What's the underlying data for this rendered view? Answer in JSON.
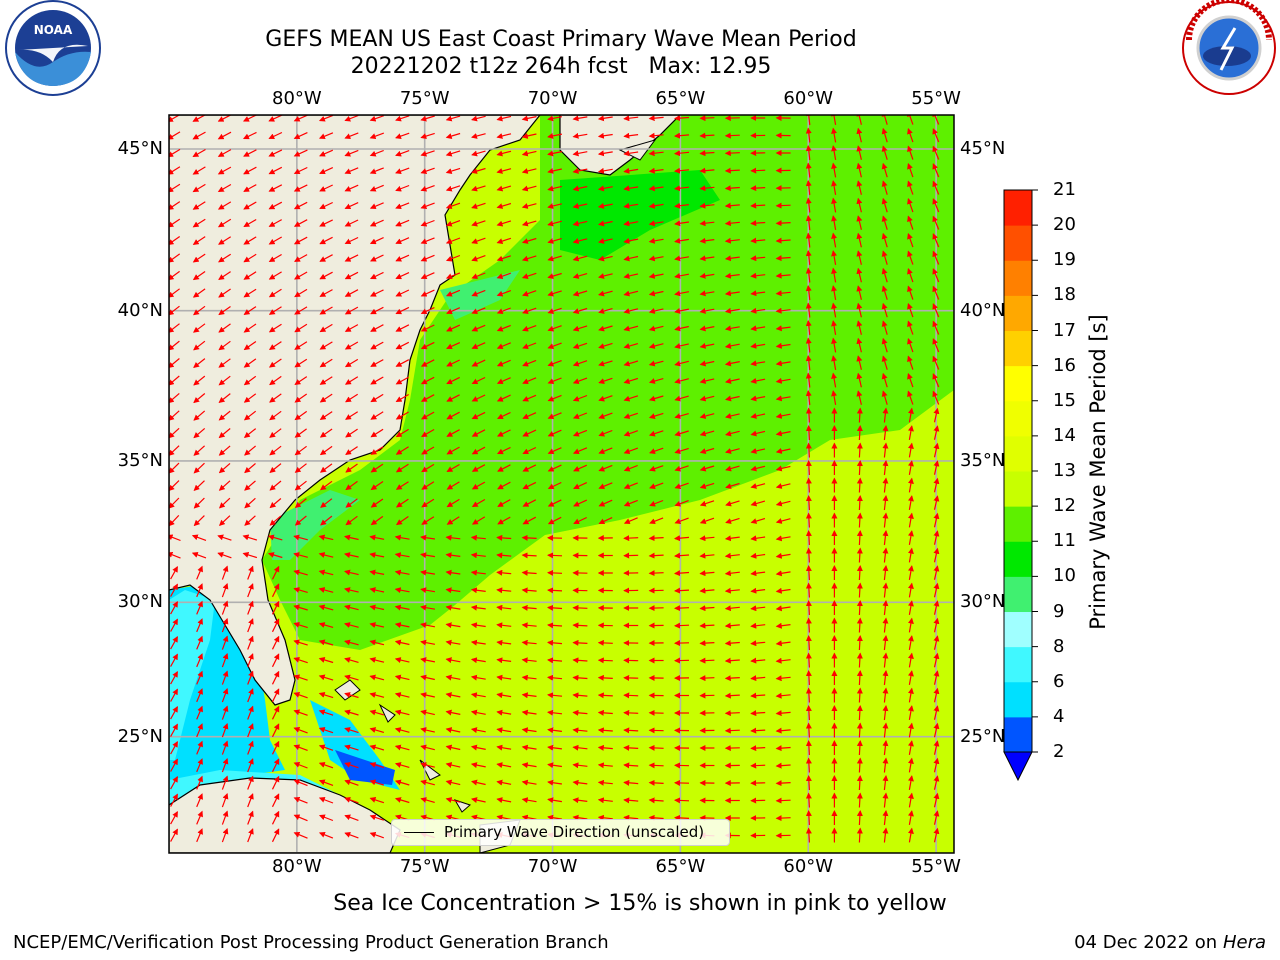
{
  "header": {
    "title_line1": "GEFS MEAN US East Coast Primary Wave Mean Period",
    "title_line2": "20221202 t12z 264h fcst   Max: 12.95"
  },
  "logos": {
    "left": {
      "icon": "noaa-logo",
      "text": "NOAA"
    },
    "right": {
      "icon": "nws-logo",
      "text": "NATIONAL WEATHER SERVICE"
    }
  },
  "map": {
    "lon_labels": [
      "80°W",
      "75°W",
      "70°W",
      "65°W",
      "60°W",
      "55°W"
    ],
    "lat_labels": [
      "45°N",
      "40°N",
      "35°N",
      "30°N",
      "25°N"
    ],
    "lon_values": [
      -80,
      -75,
      -70,
      -65,
      -60,
      -55
    ],
    "lat_values": [
      45,
      40,
      35,
      30,
      25
    ],
    "extent": {
      "lon_min": -85,
      "lon_max": -54.3,
      "lat_min": 20.5,
      "lat_max": 46
    },
    "land_color": "#efedde",
    "arrow_color": "#ff0000",
    "grid_color": "#b0b0b0",
    "legend": "Primary Wave Direction (unscaled)"
  },
  "colorbar": {
    "label": "Primary Wave Mean Period [s]",
    "ticks": [
      "2",
      "4",
      "6",
      "8",
      "9",
      "10",
      "11",
      "12",
      "13",
      "14",
      "15",
      "16",
      "17",
      "18",
      "19",
      "20",
      "21"
    ],
    "colors": [
      "#0055ff",
      "#00e0ff",
      "#40f8ff",
      "#a0ffff",
      "#40f070",
      "#00e800",
      "#5ef000",
      "#c8ff00",
      "#e0ff00",
      "#f0ff00",
      "#ffff00",
      "#ffd000",
      "#ffa800",
      "#ff8000",
      "#ff5000",
      "#ff2000"
    ],
    "under_color": "#0000ff"
  },
  "annotation": "Sea Ice Concentration > 15% is shown in pink to yellow",
  "footer": {
    "left": "NCEP/EMC/Verification Post Processing Product Generation Branch",
    "date": "04 Dec 2022 on",
    "machine": "Hera"
  }
}
